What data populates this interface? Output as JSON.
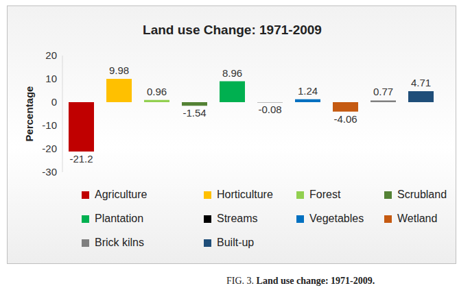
{
  "chart_data": {
    "type": "bar",
    "title": "Land use Change: 1971-2009",
    "y_label": "Percentage",
    "categories": [
      "Agriculture",
      "Horticulture",
      "Forest",
      "Scrubland",
      "Plantation",
      "Streams",
      "Vegetables",
      "Wetland",
      "Brick kilns",
      "Built-up"
    ],
    "values": [
      -21.2,
      9.98,
      0.96,
      -1.54,
      8.96,
      -0.08,
      1.24,
      -4.06,
      0.77,
      4.71
    ],
    "colors": [
      "#c00000",
      "#ffc000",
      "#92d050",
      "#548235",
      "#00b050",
      "#000000",
      "#0070c0",
      "#c55a11",
      "#7f7f7f",
      "#1f4e79"
    ],
    "ylim": [
      -30,
      20
    ],
    "yticks": [
      -30,
      -20,
      -10,
      0,
      10,
      20
    ],
    "grid": false,
    "legend": "bottom",
    "data_labels": true,
    "tick_labels": "y",
    "annotations": [
      "FIG. 3.",
      "Land use change: 1971-2009."
    ]
  }
}
